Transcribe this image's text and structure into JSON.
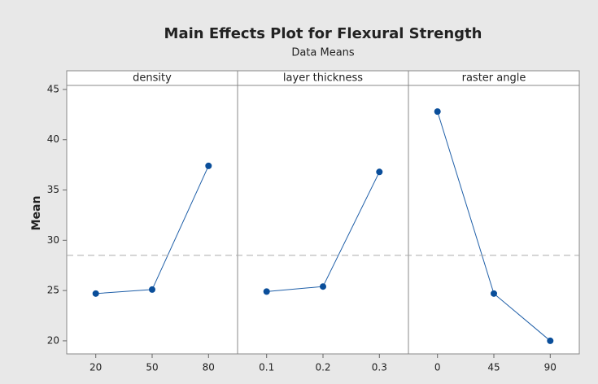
{
  "chart_data": {
    "type": "line",
    "title": "Main Effects Plot for Flexural Strength",
    "subtitle": "Data Means",
    "ylabel": "Mean",
    "ylim": [
      18.7,
      45.4
    ],
    "yticks": [
      20,
      25,
      30,
      35,
      40,
      45
    ],
    "mean_line": 28.5,
    "color": "#1f5fa8",
    "panels": [
      {
        "name": "density",
        "categories": [
          "20",
          "50",
          "80"
        ],
        "values": [
          24.7,
          25.1,
          37.4
        ]
      },
      {
        "name": "layer thickness",
        "categories": [
          "0.1",
          "0.2",
          "0.3"
        ],
        "values": [
          24.9,
          25.4,
          36.8
        ]
      },
      {
        "name": "raster angle",
        "categories": [
          "0",
          "45",
          "90"
        ],
        "values": [
          42.8,
          24.7,
          20.0
        ]
      }
    ]
  }
}
